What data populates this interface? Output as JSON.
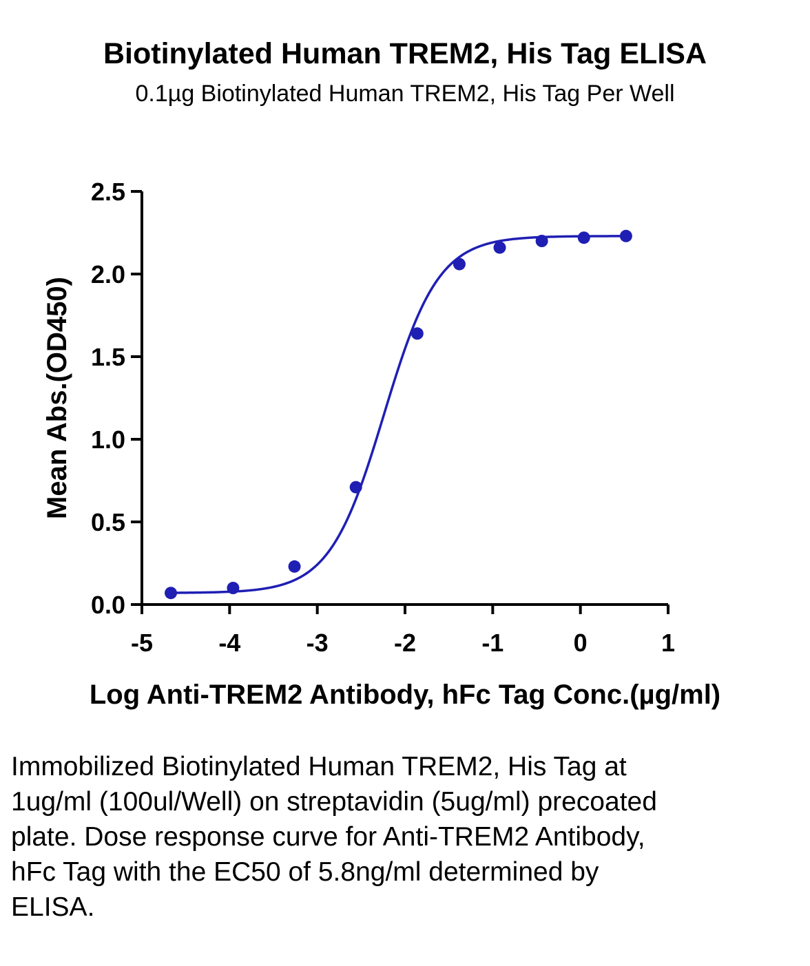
{
  "header": {
    "title": "Biotinylated Human TREM2, His Tag ELISA",
    "subtitle": "0.1µg Biotinylated Human TREM2, His Tag Per Well"
  },
  "chart_data": {
    "type": "scatter",
    "title": "Biotinylated Human TREM2, His Tag ELISA",
    "subtitle": "0.1µg Biotinylated Human TREM2, His Tag Per Well",
    "xlabel": "Log Anti-TREM2 Antibody, hFc Tag Conc.(µg/ml)",
    "ylabel": "Mean Abs.(OD450)",
    "xlim": [
      -5,
      1
    ],
    "ylim": [
      0,
      2.5
    ],
    "xticks": [
      "-5",
      "-4",
      "-3",
      "-2",
      "-1",
      "0",
      "1"
    ],
    "yticks": [
      "0.0",
      "0.5",
      "1.0",
      "1.5",
      "2.0",
      "2.5"
    ],
    "grid": false,
    "legend": "none",
    "series": [
      {
        "x": [
          -4.67,
          -3.96,
          -3.26,
          -2.56,
          -1.86,
          -1.38,
          -0.92,
          -0.44,
          0.04,
          0.52
        ],
        "y": [
          0.07,
          0.1,
          0.23,
          0.71,
          1.64,
          2.06,
          2.16,
          2.2,
          2.22,
          2.23
        ],
        "color": "#1f1fb4"
      }
    ],
    "fit": {
      "model": "four-parameter logistic",
      "bottom": 0.07,
      "top": 2.23,
      "log_ec50": -2.24,
      "hill_slope": 1.4,
      "x_range": [
        -4.67,
        0.52
      ]
    }
  },
  "caption": {
    "text": "Immobilized Biotinylated Human TREM2, His Tag at 1ug/ml (100ul/Well) on streptavidin (5ug/ml) precoated plate. Dose response curve for Anti-TREM2 Antibody, hFc Tag with the EC50 of 5.8ng/ml determined by ELISA."
  }
}
